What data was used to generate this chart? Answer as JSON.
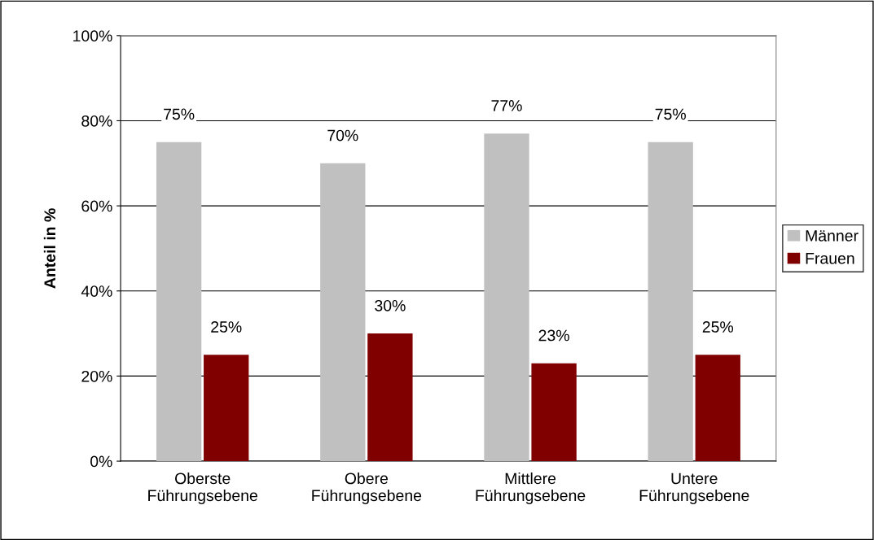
{
  "chart_data": {
    "type": "bar",
    "ylabel": "Anteil in %",
    "categories": [
      "Oberste\nFührungsebene",
      "Obere\nFührungsebene",
      "Mittlere\nFührungsebene",
      "Untere\nFührungsebene"
    ],
    "series": [
      {
        "name": "Männer",
        "color": "#c0c0c0",
        "values": [
          75,
          70,
          77,
          75
        ],
        "value_labels": [
          "75%",
          "70%",
          "77%",
          "75%"
        ]
      },
      {
        "name": "Frauen",
        "color": "#800000",
        "values": [
          25,
          30,
          23,
          25
        ],
        "value_labels": [
          "25%",
          "30%",
          "23%",
          "25%"
        ]
      }
    ],
    "ylim": [
      0,
      100
    ],
    "yticks": [
      {
        "value": 0,
        "label": "0%"
      },
      {
        "value": 20,
        "label": "20%"
      },
      {
        "value": 40,
        "label": "40%"
      },
      {
        "value": 60,
        "label": "60%"
      },
      {
        "value": 80,
        "label": "80%"
      },
      {
        "value": 100,
        "label": "100%"
      }
    ],
    "grid": "y",
    "legend": "right"
  }
}
